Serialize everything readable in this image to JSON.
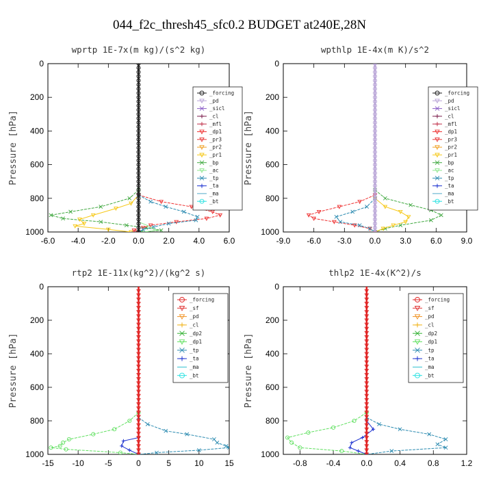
{
  "suptitle": "044_f2c_thresh45_sfc0.2  BUDGET at240E,28N",
  "colors": {
    "_forcing": "#1a1a1a",
    "_pd": "#b7a2d6",
    "_sicl": "#8a5cc7",
    "_cl": "#7a1a4a",
    "_mfl": "#c0304a",
    "_dp1": "#ee3030",
    "_pr3": "#e83838",
    "_pr2": "#f0a020",
    "_pr1": "#f6c818",
    "_bp": "#40a840",
    "_ac": "#8ee68e",
    "_tp": "#2a8ab0",
    "_ta": "#1a30d0",
    "_ma": "#50a8c8",
    "_bt": "#20e0e0",
    "r_forcing": "#e02020",
    "r_sf": "#e03030",
    "r_pd": "#f09020",
    "r_cl": "#f0b010",
    "r_dp2": "#30b030",
    "r_dp1": "#60e060",
    "r_tp": "#2a8ab0",
    "r_ta": "#1a30d0",
    "r_ma": "#30c0d0",
    "r_bt": "#20e0e0"
  },
  "chart_data": [
    {
      "type": "line",
      "title": "wprtp  1E-7x(m kg)/(s^2 kg)",
      "ylabel": "Pressure [hPa]",
      "xlim": [
        -6,
        6
      ],
      "ylim": [
        1000,
        0
      ],
      "xticks": [
        "-6.0",
        "-4.0",
        "-2.0",
        "0.0",
        "2.0",
        "4.0",
        "6.0"
      ],
      "xtick_values": [
        -6,
        -4,
        -2,
        0,
        2,
        4,
        6
      ],
      "yticks": [
        "0",
        "200",
        "400",
        "600",
        "800",
        "1000"
      ],
      "ytick_values": [
        0,
        200,
        400,
        600,
        800,
        1000
      ],
      "legend_position": "top-right",
      "legend": [
        "_forcing",
        "_pd",
        "_sicl",
        "_cl",
        "_mfl",
        "_dp1",
        "_pr3",
        "_pr2",
        "_pr1",
        "_bp",
        "_ac",
        "_tp",
        "_ta",
        "_ma",
        "_bt"
      ],
      "series": [
        {
          "name": "_bp",
          "color_key": "_bp",
          "marker": "x",
          "y": [
            750,
            800,
            850,
            880,
            900,
            920,
            940,
            960,
            975,
            990,
            1000
          ],
          "x": [
            0,
            -0.6,
            -2.5,
            -4.5,
            -5.8,
            -5.0,
            -2.5,
            -0.8,
            0.5,
            1.5,
            0.2
          ]
        },
        {
          "name": "_pr1",
          "color_key": "_pr1",
          "marker": "tri",
          "y": [
            780,
            830,
            860,
            900,
            925,
            950,
            965,
            985,
            1000
          ],
          "x": [
            0,
            -0.5,
            -1.5,
            -3.0,
            -3.9,
            -3.6,
            -4.2,
            -2.0,
            -0.5
          ]
        },
        {
          "name": "_dp1",
          "color_key": "_dp1",
          "marker": "tri",
          "y": [
            780,
            820,
            850,
            880,
            900,
            920,
            940,
            960,
            975,
            990,
            1000
          ],
          "x": [
            0,
            1.5,
            3.5,
            4.9,
            5.4,
            4.5,
            2.5,
            0.8,
            0.3,
            -0.3,
            0
          ]
        },
        {
          "name": "_tp",
          "color_key": "_tp",
          "marker": "x",
          "y": [
            780,
            820,
            850,
            880,
            910,
            930,
            950,
            970,
            985,
            1000
          ],
          "x": [
            0,
            0.8,
            1.8,
            3.0,
            3.9,
            3.8,
            2.0,
            1.0,
            0.3,
            0
          ]
        },
        {
          "name": "_ac",
          "color_key": "_ac",
          "marker": "none",
          "y": [
            940,
            970,
            990,
            1000
          ],
          "x": [
            0,
            0.8,
            1.2,
            0.4
          ]
        },
        {
          "name": "_forcing",
          "color_key": "_forcing",
          "marker": "circle",
          "y": [
            0,
            1000
          ],
          "x": [
            0,
            0
          ]
        }
      ]
    },
    {
      "type": "line",
      "title": "wpthlp  1E-4x(m K)/s^2",
      "ylabel": "Pressure [hPa]",
      "xlim": [
        -9,
        9
      ],
      "ylim": [
        1000,
        0
      ],
      "xticks": [
        "-9.0",
        "-6.0",
        "-3.0",
        "0.0",
        "3.0",
        "6.0",
        "9.0"
      ],
      "xtick_values": [
        -9,
        -6,
        -3,
        0,
        3,
        6,
        9
      ],
      "yticks": [
        "0",
        "200",
        "400",
        "600",
        "800",
        "1000"
      ],
      "ytick_values": [
        0,
        200,
        400,
        600,
        800,
        1000
      ],
      "legend_position": "top-right",
      "legend": [
        "_forcing",
        "_pd",
        "_sicl",
        "_cl",
        "_mfl",
        "_dp1",
        "_pr3",
        "_pr2",
        "_pr1",
        "_bp",
        "_ac",
        "_tp",
        "_ta",
        "_ma",
        "_bt"
      ],
      "series": [
        {
          "name": "_bp",
          "color_key": "_bp",
          "marker": "x",
          "y": [
            750,
            800,
            840,
            870,
            900,
            930,
            960,
            980,
            1000
          ],
          "x": [
            0,
            1.0,
            3.5,
            5.5,
            6.5,
            5.5,
            2.5,
            1.0,
            0
          ]
        },
        {
          "name": "_pr1",
          "color_key": "_pr1",
          "marker": "tri",
          "y": [
            800,
            850,
            880,
            910,
            940,
            960,
            980,
            1000
          ],
          "x": [
            0,
            1.0,
            2.5,
            3.3,
            3.0,
            1.8,
            0.8,
            0
          ]
        },
        {
          "name": "_dp1",
          "color_key": "_dp1",
          "marker": "tri",
          "y": [
            780,
            820,
            850,
            880,
            900,
            920,
            940,
            960,
            980,
            1000
          ],
          "x": [
            0,
            -1.5,
            -3.5,
            -5.5,
            -6.5,
            -6.0,
            -4.0,
            -2.0,
            -0.5,
            0
          ]
        },
        {
          "name": "_tp",
          "color_key": "_tp",
          "marker": "x",
          "y": [
            800,
            850,
            880,
            910,
            940,
            960,
            980,
            1000
          ],
          "x": [
            0,
            -0.8,
            -2.2,
            -3.8,
            -3.4,
            -1.5,
            -0.5,
            0
          ]
        },
        {
          "name": "_forcing",
          "color_key": "_pd",
          "marker": "circle",
          "y": [
            0,
            1000
          ],
          "x": [
            0,
            0
          ]
        }
      ]
    },
    {
      "type": "line",
      "title": "rtp2  1E-11x(kg^2)/(kg^2 s)",
      "ylabel": "Pressure [hPa]",
      "xlim": [
        -15,
        15
      ],
      "ylim": [
        1000,
        0
      ],
      "xticks": [
        "-15",
        "-10",
        "-5",
        "0",
        "5",
        "10",
        "15"
      ],
      "xtick_values": [
        -15,
        -10,
        -5,
        0,
        5,
        10,
        15
      ],
      "yticks": [
        "0",
        "200",
        "400",
        "600",
        "800",
        "1000"
      ],
      "ytick_values": [
        0,
        200,
        400,
        600,
        800,
        1000
      ],
      "legend_position": "top-right",
      "legend": [
        "_forcing",
        "_sf",
        "_pd",
        "_cl",
        "_dp2",
        "_dp1",
        "_tp",
        "_ta",
        "_ma",
        "_bt"
      ],
      "series": [
        {
          "name": "_dp1",
          "color_key": "r_dp1",
          "marker": "circle",
          "y": [
            750,
            800,
            850,
            880,
            910,
            930,
            950,
            960,
            970,
            990,
            1000
          ],
          "x": [
            0,
            -1.5,
            -4.0,
            -7.5,
            -11.5,
            -12.5,
            -13.0,
            -14.5,
            -12.0,
            -3.0,
            0
          ]
        },
        {
          "name": "_tp",
          "color_key": "r_tp",
          "marker": "x",
          "y": [
            780,
            820,
            860,
            880,
            910,
            930,
            950,
            960,
            975,
            990,
            1000
          ],
          "x": [
            0,
            1.5,
            4.5,
            8.0,
            12.5,
            13.0,
            14.5,
            15.0,
            10.0,
            3.0,
            0
          ]
        },
        {
          "name": "_ta",
          "color_key": "r_ta",
          "marker": "plus",
          "y": [
            900,
            920,
            950,
            975,
            1000
          ],
          "x": [
            0,
            -2.5,
            -2.8,
            -1.5,
            0
          ]
        },
        {
          "name": "_forcing",
          "color_key": "r_forcing",
          "marker": "tri",
          "y": [
            0,
            1000
          ],
          "x": [
            0,
            0
          ]
        }
      ]
    },
    {
      "type": "line",
      "title": "thlp2  1E-4x(K^2)/s",
      "ylabel": "Pressure [hPa]",
      "xlim": [
        -1.0,
        1.2
      ],
      "ylim": [
        1000,
        0
      ],
      "xticks": [
        "-0.8",
        "-0.4",
        "0.0",
        "0.4",
        "0.8",
        "1.2"
      ],
      "xtick_values": [
        -0.8,
        -0.4,
        0.0,
        0.4,
        0.8,
        1.2
      ],
      "yticks": [
        "0",
        "200",
        "400",
        "600",
        "800",
        "1000"
      ],
      "ytick_values": [
        0,
        200,
        400,
        600,
        800,
        1000
      ],
      "legend_position": "top-right",
      "legend": [
        "_forcing",
        "_sf",
        "_pd",
        "_cl",
        "_dp2",
        "_dp1",
        "_tp",
        "_ta",
        "_ma",
        "_bt"
      ],
      "series": [
        {
          "name": "_dp1",
          "color_key": "r_dp1",
          "marker": "circle",
          "y": [
            750,
            800,
            840,
            870,
            900,
            930,
            960,
            980,
            1000
          ],
          "x": [
            0,
            -0.15,
            -0.4,
            -0.7,
            -0.95,
            -0.9,
            -0.8,
            -0.3,
            0
          ]
        },
        {
          "name": "_tp",
          "color_key": "r_tp",
          "marker": "x",
          "y": [
            780,
            820,
            850,
            880,
            910,
            940,
            960,
            980,
            1000
          ],
          "x": [
            0,
            0.15,
            0.4,
            0.75,
            0.95,
            0.85,
            0.95,
            0.3,
            0
          ]
        },
        {
          "name": "_ta",
          "color_key": "r_ta",
          "marker": "plus",
          "y": [
            800,
            850,
            900,
            930,
            960,
            980,
            1000
          ],
          "x": [
            0,
            0.08,
            -0.05,
            -0.18,
            -0.2,
            -0.1,
            0
          ]
        },
        {
          "name": "_forcing",
          "color_key": "r_forcing",
          "marker": "tri",
          "y": [
            0,
            1000
          ],
          "x": [
            0,
            0
          ]
        }
      ]
    }
  ]
}
